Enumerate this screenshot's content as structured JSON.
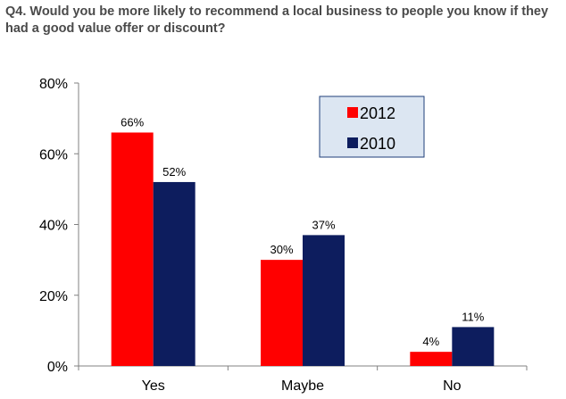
{
  "chart_data": {
    "type": "bar",
    "title": "Q4. Would you be more likely to recommend a local business to people you know if they had a good value offer or discount?",
    "categories": [
      "Yes",
      "Maybe",
      "No"
    ],
    "series": [
      {
        "name": "2012",
        "values": [
          66,
          30,
          4
        ],
        "color": "#ff0000"
      },
      {
        "name": "2010",
        "values": [
          52,
          37,
          11
        ],
        "color": "#0d1d5e"
      }
    ],
    "data_labels": [
      [
        "66%",
        "30%",
        "4%"
      ],
      [
        "52%",
        "37%",
        "11%"
      ]
    ],
    "ylim": [
      0,
      80
    ],
    "yticks": [
      0,
      20,
      40,
      60,
      80
    ],
    "ytick_labels": [
      "0%",
      "20%",
      "40%",
      "60%",
      "80%"
    ],
    "grid": false,
    "legend_position": "top-right",
    "legend_bg": "#dce6f2"
  }
}
